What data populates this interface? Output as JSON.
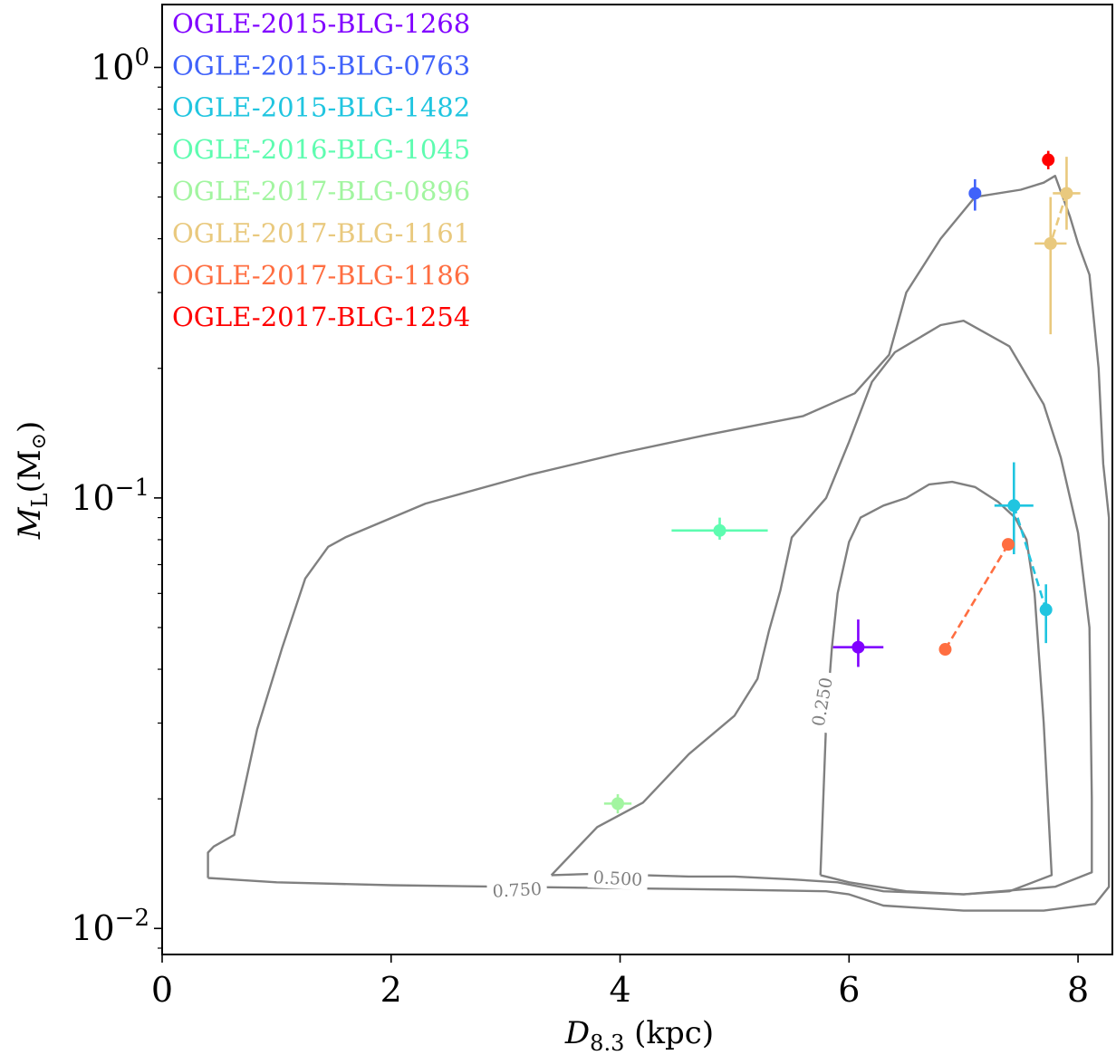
{
  "chart_data": {
    "type": "scatter",
    "xlabel_main": "D",
    "xlabel_sub": "8.3",
    "xlabel_unit": " (kpc)",
    "ylabel_main": "M",
    "ylabel_sub": "L",
    "ylabel_unit_open": "(M",
    "ylabel_unit_close": ")",
    "xlim": [
      0,
      8.3
    ],
    "ylim": [
      0.0087,
      1.4
    ],
    "yscale": "log",
    "x_ticks": [
      {
        "value": 0,
        "label": "0"
      },
      {
        "value": 2,
        "label": "2"
      },
      {
        "value": 4,
        "label": "4"
      },
      {
        "value": 6,
        "label": "6"
      },
      {
        "value": 8,
        "label": "8"
      }
    ],
    "y_ticks": [
      {
        "value": 1,
        "base": "10",
        "exp": "0"
      },
      {
        "value": 0.1,
        "base": "10",
        "exp": "−1"
      },
      {
        "value": 0.01,
        "base": "10",
        "exp": "−2"
      }
    ],
    "legend_position": "top-left",
    "series": [
      {
        "name": "OGLE-2015-BLG-1268",
        "color": "#8000ff",
        "points": [
          {
            "x": 6.08,
            "y": 0.045,
            "xerr": [
              0.22,
              0.22
            ],
            "yerr": [
              0.0045,
              0.0072
            ]
          }
        ]
      },
      {
        "name": "OGLE-2015-BLG-0763",
        "color": "#4062fa",
        "points": [
          {
            "x": 7.1,
            "y": 0.51,
            "xerr": [
              0,
              0
            ],
            "yerr": [
              0.045,
              0.04
            ]
          }
        ]
      },
      {
        "name": "OGLE-2015-BLG-1482",
        "color": "#20c5e0",
        "points": [
          {
            "x": 7.44,
            "y": 0.096,
            "xerr": [
              0.17,
              0.17
            ],
            "yerr": [
              0.022,
              0.025
            ]
          },
          {
            "x": 7.72,
            "y": 0.055,
            "xerr": [
              0,
              0
            ],
            "yerr": [
              0.009,
              0.008
            ]
          }
        ]
      },
      {
        "name": "OGLE-2016-BLG-1045",
        "color": "#5efcb0",
        "points": [
          {
            "x": 4.87,
            "y": 0.084,
            "xerr": [
              0.42,
              0.42
            ],
            "yerr": [
              0.004,
              0.006
            ]
          }
        ]
      },
      {
        "name": "OGLE-2017-BLG-0896",
        "color": "#a2f5a0",
        "points": [
          {
            "x": 3.98,
            "y": 0.0195,
            "xerr": [
              0.12,
              0.12
            ],
            "yerr": [
              0.001,
              0.001
            ]
          }
        ]
      },
      {
        "name": "OGLE-2017-BLG-1161",
        "color": "#e9c97e",
        "points": [
          {
            "x": 7.9,
            "y": 0.51,
            "xerr": [
              0.12,
              0.12
            ],
            "yerr": [
              0.09,
              0.11
            ]
          },
          {
            "x": 7.76,
            "y": 0.39,
            "xerr": [
              0.14,
              0.14
            ],
            "yerr": [
              0.15,
              0.11
            ]
          }
        ]
      },
      {
        "name": "OGLE-2017-BLG-1186",
        "color": "#ff6e41",
        "points": [
          {
            "x": 7.39,
            "y": 0.078,
            "xerr": [
              0,
              0
            ],
            "yerr": [
              0,
              0
            ]
          },
          {
            "x": 6.84,
            "y": 0.0445,
            "xerr": [
              0,
              0
            ],
            "yerr": [
              0,
              0
            ]
          }
        ]
      },
      {
        "name": "OGLE-2017-BLG-1254",
        "color": "#ff0000",
        "points": [
          {
            "x": 7.74,
            "y": 0.61,
            "xerr": [
              0,
              0
            ],
            "yerr": [
              0.03,
              0.03
            ]
          }
        ]
      }
    ],
    "connected_series": [
      "OGLE-2015-BLG-1482",
      "OGLE-2017-BLG-1161",
      "OGLE-2017-BLG-1186"
    ],
    "contours": [
      {
        "level": "0.750",
        "color": "#808080",
        "points": [
          [
            0.4,
            0.0131
          ],
          [
            0.4,
            0.015
          ],
          [
            0.45,
            0.0155
          ],
          [
            0.63,
            0.0165
          ],
          [
            0.83,
            0.029
          ],
          [
            1.05,
            0.045
          ],
          [
            1.25,
            0.065
          ],
          [
            1.45,
            0.077
          ],
          [
            1.6,
            0.081
          ],
          [
            2.3,
            0.097
          ],
          [
            3.2,
            0.113
          ],
          [
            4.0,
            0.127
          ],
          [
            4.75,
            0.14
          ],
          [
            5.6,
            0.155
          ],
          [
            6.05,
            0.175
          ],
          [
            6.35,
            0.215
          ],
          [
            6.5,
            0.3
          ],
          [
            6.8,
            0.4
          ],
          [
            7.1,
            0.5
          ],
          [
            7.5,
            0.52
          ],
          [
            7.7,
            0.54
          ],
          [
            7.8,
            0.56
          ],
          [
            7.93,
            0.45
          ],
          [
            8.0,
            0.39
          ],
          [
            8.1,
            0.33
          ],
          [
            8.18,
            0.2
          ],
          [
            8.22,
            0.12
          ],
          [
            8.27,
            0.09
          ],
          [
            8.27,
            0.03
          ],
          [
            8.27,
            0.0125
          ],
          [
            8.15,
            0.0114
          ],
          [
            7.7,
            0.011
          ],
          [
            7.0,
            0.011
          ],
          [
            6.3,
            0.0113
          ],
          [
            6.0,
            0.012
          ],
          [
            5.8,
            0.0122
          ],
          [
            5.0,
            0.0123
          ],
          [
            4.0,
            0.0124
          ],
          [
            3.0,
            0.0125
          ],
          [
            2.0,
            0.0126
          ],
          [
            1.0,
            0.0128
          ],
          [
            0.4,
            0.0131
          ]
        ]
      },
      {
        "level": "0.500",
        "color": "#808080",
        "points": [
          [
            3.4,
            0.0133
          ],
          [
            3.8,
            0.0172
          ],
          [
            4.2,
            0.0196
          ],
          [
            4.6,
            0.0254
          ],
          [
            5.0,
            0.0312
          ],
          [
            5.2,
            0.038
          ],
          [
            5.3,
            0.049
          ],
          [
            5.4,
            0.061
          ],
          [
            5.5,
            0.081
          ],
          [
            5.8,
            0.1
          ],
          [
            6.0,
            0.135
          ],
          [
            6.2,
            0.186
          ],
          [
            6.4,
            0.218
          ],
          [
            6.8,
            0.252
          ],
          [
            7.0,
            0.258
          ],
          [
            7.4,
            0.225
          ],
          [
            7.7,
            0.165
          ],
          [
            7.85,
            0.124
          ],
          [
            8.0,
            0.083
          ],
          [
            8.1,
            0.05
          ],
          [
            8.12,
            0.02
          ],
          [
            8.12,
            0.0135
          ],
          [
            7.8,
            0.0125
          ],
          [
            7.0,
            0.012
          ],
          [
            6.3,
            0.0122
          ],
          [
            5.9,
            0.0128
          ],
          [
            5.5,
            0.013
          ],
          [
            5.0,
            0.0132
          ],
          [
            4.6,
            0.0132
          ],
          [
            4.2,
            0.0133
          ],
          [
            3.8,
            0.0134
          ],
          [
            3.4,
            0.0133
          ]
        ]
      },
      {
        "level": "0.250",
        "color": "#808080",
        "points": [
          [
            5.75,
            0.0133
          ],
          [
            5.8,
            0.03
          ],
          [
            5.85,
            0.045
          ],
          [
            5.9,
            0.06
          ],
          [
            6.0,
            0.079
          ],
          [
            6.1,
            0.09
          ],
          [
            6.3,
            0.096
          ],
          [
            6.5,
            0.1
          ],
          [
            6.7,
            0.1075
          ],
          [
            6.9,
            0.109
          ],
          [
            7.1,
            0.106
          ],
          [
            7.3,
            0.098
          ],
          [
            7.45,
            0.09
          ],
          [
            7.55,
            0.08
          ],
          [
            7.62,
            0.06
          ],
          [
            7.7,
            0.03
          ],
          [
            7.77,
            0.0133
          ],
          [
            7.4,
            0.0122
          ],
          [
            7.0,
            0.012
          ],
          [
            6.5,
            0.0122
          ],
          [
            6.0,
            0.0128
          ],
          [
            5.75,
            0.0133
          ]
        ]
      }
    ],
    "contour_labels": [
      {
        "text": "0.750",
        "x": 3.1,
        "y": 0.01225,
        "angle": -3
      },
      {
        "text": "0.500",
        "x": 3.98,
        "y": 0.01303,
        "angle": 3
      },
      {
        "text": "0.250",
        "x": 5.77,
        "y": 0.0336,
        "angle": -80
      }
    ]
  }
}
